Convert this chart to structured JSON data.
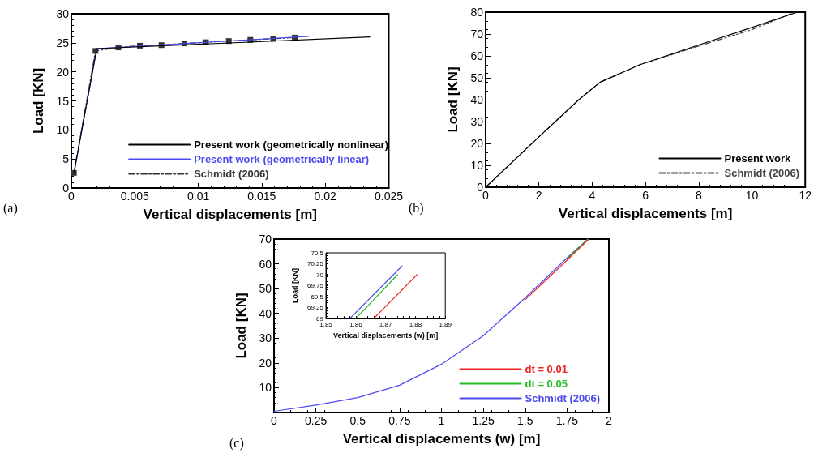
{
  "chart_data": [
    {
      "type": "line",
      "xlabel": "Vertical displacements [m]",
      "ylabel": "Load [KN]",
      "xlim": [
        0,
        0.025
      ],
      "xticks": [
        0,
        0.005,
        0.01,
        0.015,
        0.02,
        0.025
      ],
      "ylim": [
        0,
        30
      ],
      "yticks": [
        0,
        5,
        10,
        15,
        20,
        25,
        30
      ],
      "legend": "bottom right",
      "grid": false,
      "annotations": [
        "(a)"
      ],
      "series": [
        {
          "name": "Present work (geometrically nonlinear)",
          "color": "#000000",
          "line_style": "solid",
          "marker": "none",
          "x": [
            0.0002,
            0.002,
            0.0235
          ],
          "values": [
            2.5,
            24,
            26
          ]
        },
        {
          "name": "Present work (geometrically linear)",
          "color": "#4a4af0",
          "line_style": "solid",
          "marker": "none",
          "x": [
            0.0002,
            0.002,
            0.0187
          ],
          "values": [
            2.5,
            24,
            26.1
          ]
        },
        {
          "name": "Schmidt (2006)",
          "color": "#333333",
          "line_style": "dashed",
          "marker": "square",
          "x": [
            0.0002,
            0.0019,
            0.0037,
            0.0054,
            0.0071,
            0.0089,
            0.0106,
            0.0124,
            0.0141,
            0.0159,
            0.0176
          ],
          "values": [
            2.6,
            23.6,
            24.2,
            24.5,
            24.6,
            24.9,
            25.1,
            25.3,
            25.5,
            25.7,
            25.9
          ]
        }
      ]
    },
    {
      "type": "line",
      "xlabel": "Vertical displacements [m]",
      "ylabel": "Load [KN]",
      "xlim": [
        0,
        12
      ],
      "xticks": [
        0,
        2,
        4,
        6,
        8,
        10,
        12
      ],
      "ylim": [
        0,
        80
      ],
      "yticks": [
        0,
        10,
        20,
        30,
        40,
        50,
        60,
        70,
        80
      ],
      "legend": "bottom right",
      "grid": false,
      "annotations": [
        "(b)"
      ],
      "series": [
        {
          "name": "Present work",
          "color": "#000000",
          "line_style": "solid",
          "marker": "none",
          "x": [
            0,
            2,
            3.5,
            4.3,
            5.8,
            8,
            10,
            11.7
          ],
          "values": [
            0,
            23,
            40,
            48,
            56,
            65,
            73,
            80
          ]
        },
        {
          "name": "Schmidt (2006)",
          "color": "#444444",
          "line_style": "dashed",
          "marker": "none",
          "x": [
            0,
            2,
            3.5,
            4.3,
            5.8,
            8,
            10,
            11.6
          ],
          "values": [
            0,
            23,
            40,
            48,
            56,
            64.5,
            72,
            80
          ]
        }
      ]
    },
    {
      "type": "line",
      "xlabel": "Vertical displacements (w) [m]",
      "ylabel": "Load [KN]",
      "xlim": [
        0,
        2
      ],
      "xticks": [
        0,
        0.25,
        0.5,
        0.75,
        1,
        1.25,
        1.5,
        1.75,
        2
      ],
      "ylim": [
        0,
        70
      ],
      "yticks": [
        10,
        20,
        30,
        40,
        50,
        60,
        70
      ],
      "legend": "bottom right",
      "grid": false,
      "annotations": [
        "(c)"
      ],
      "series": [
        {
          "name": "dt = 0.01",
          "color": "#ee2222",
          "line_style": "solid",
          "marker": "none",
          "x": [
            1.5,
            1.75,
            1.88
          ],
          "values": [
            45.5,
            61.5,
            70
          ]
        },
        {
          "name": "dt = 0.05",
          "color": "#22bb22",
          "line_style": "solid",
          "marker": "none",
          "x": [
            1.75,
            1.875
          ],
          "values": [
            62,
            70
          ]
        },
        {
          "name": "Schmidt (2006)",
          "color": "#4a4af0",
          "line_style": "solid",
          "marker": "none",
          "x": [
            0,
            0.25,
            0.5,
            0.75,
            1,
            1.25,
            1.5,
            1.75,
            1.875
          ],
          "values": [
            0.5,
            3,
            6,
            11,
            19.5,
            31,
            46.3,
            62.4,
            70
          ]
        }
      ]
    },
    {
      "type": "line",
      "xlabel": "Vertical displacements (w) [m]",
      "ylabel": "Load [KN]",
      "xlim": [
        1.85,
        1.89
      ],
      "xticks": [
        1.85,
        1.86,
        1.87,
        1.88,
        1.89
      ],
      "ylim": [
        69,
        70.5
      ],
      "yticks": [
        69,
        69.25,
        69.5,
        69.75,
        70,
        70.25,
        70.5
      ],
      "legend": false,
      "grid": false,
      "series": [
        {
          "color": "#4a4af0",
          "line_style": "solid",
          "marker": "none",
          "x": [
            1.858,
            1.8755
          ],
          "values": [
            69,
            70.2
          ]
        },
        {
          "color": "#22bb22",
          "line_style": "solid",
          "marker": "none",
          "x": [
            1.86,
            1.874
          ],
          "values": [
            69,
            70
          ]
        },
        {
          "color": "#ee2222",
          "line_style": "solid",
          "marker": "none",
          "x": [
            1.866,
            1.8805
          ],
          "values": [
            69,
            70
          ]
        }
      ]
    }
  ]
}
